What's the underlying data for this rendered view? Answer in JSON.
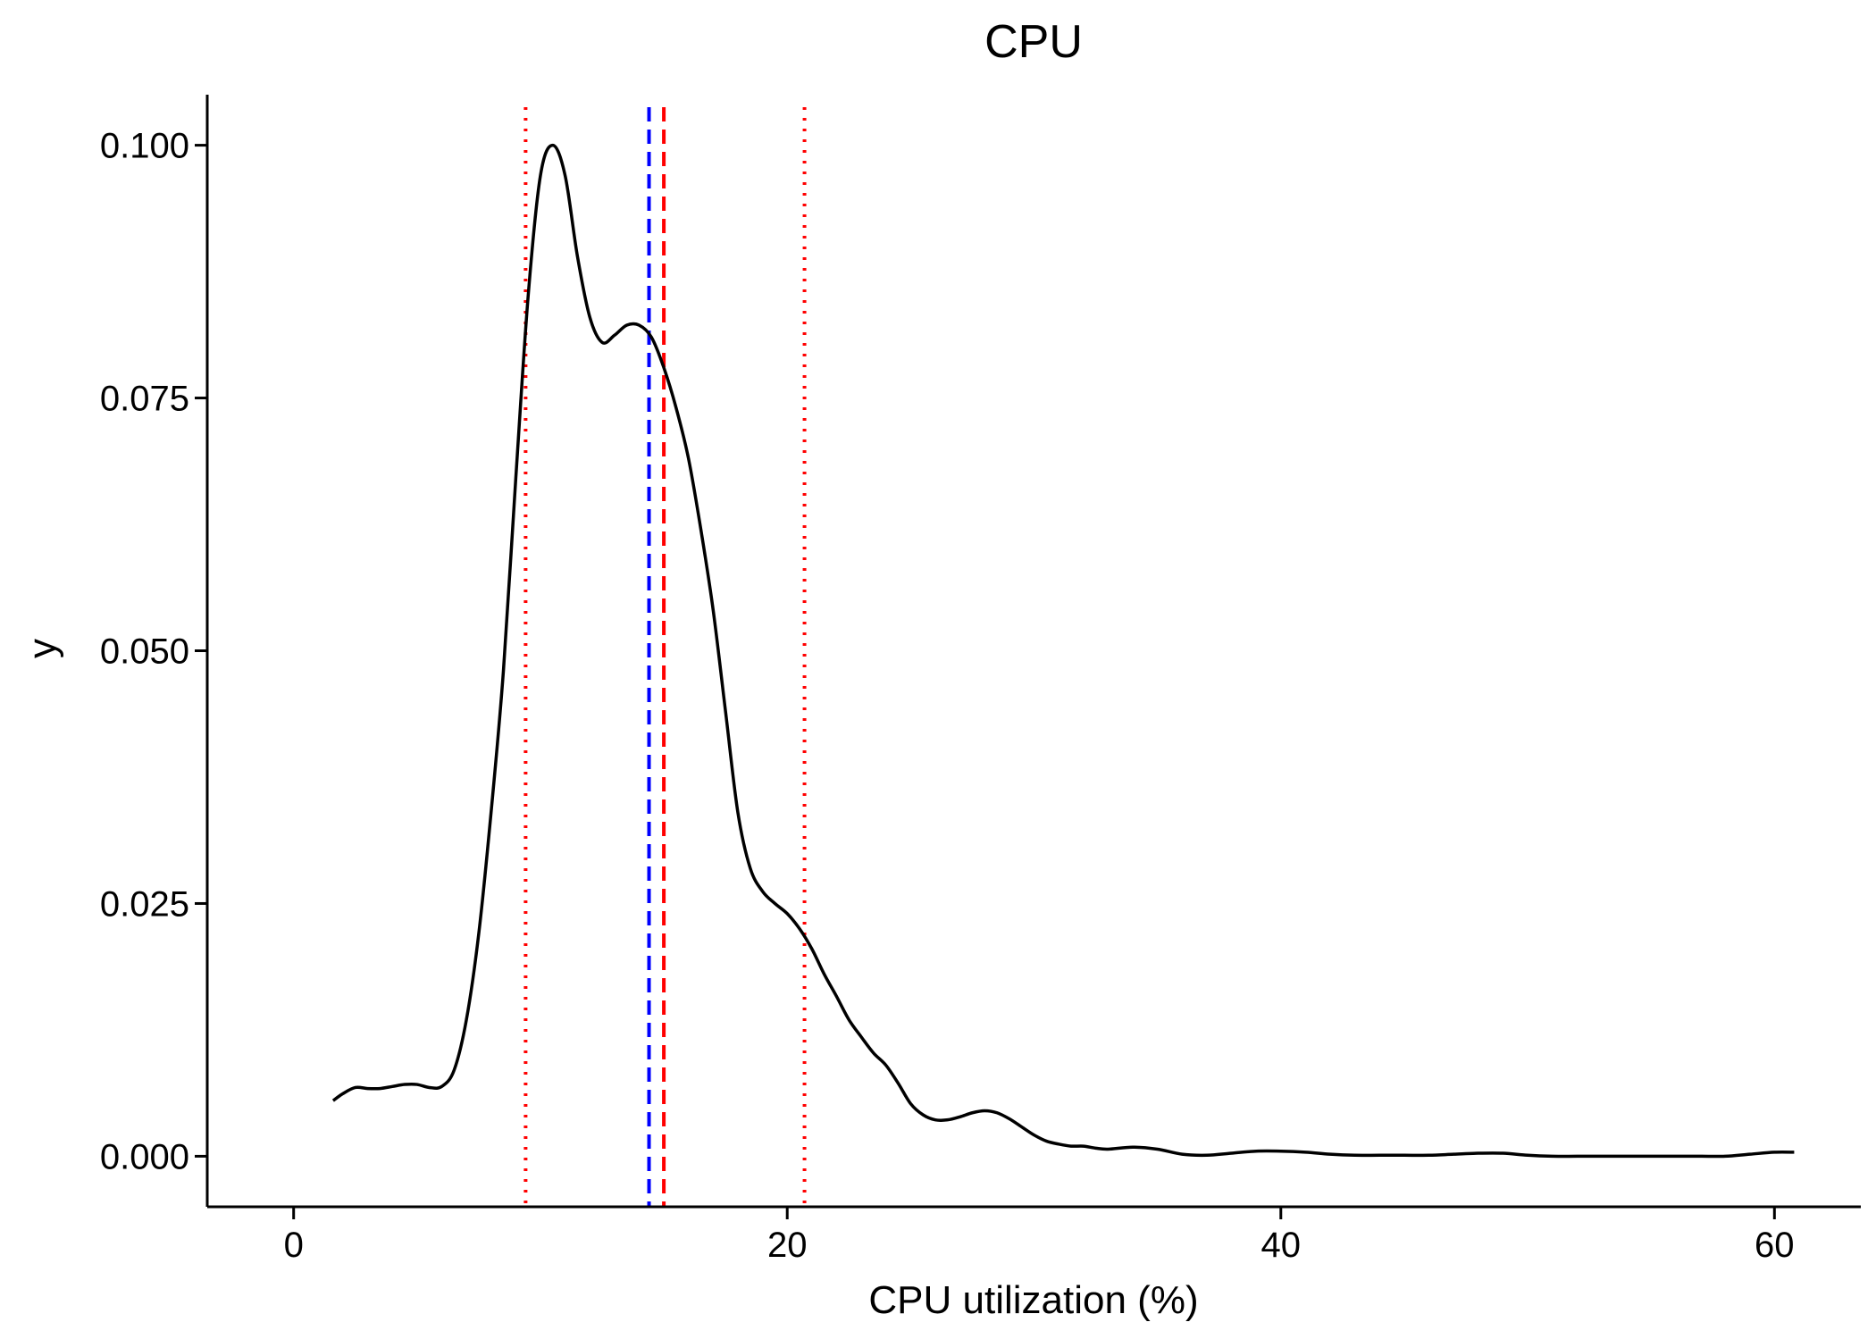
{
  "chart_data": {
    "type": "line",
    "title": "CPU",
    "xlabel": "CPU utilization (%)",
    "ylabel": "y",
    "xlim": [
      -3.5,
      63.5
    ],
    "ylim": [
      -0.005,
      0.105
    ],
    "x_ticks": [
      {
        "value": 0,
        "label": "0"
      },
      {
        "value": 20,
        "label": "20"
      },
      {
        "value": 40,
        "label": "40"
      },
      {
        "value": 60,
        "label": "60"
      }
    ],
    "y_ticks": [
      {
        "value": 0.0,
        "label": "0.000"
      },
      {
        "value": 0.025,
        "label": "0.025"
      },
      {
        "value": 0.05,
        "label": "0.050"
      },
      {
        "value": 0.075,
        "label": "0.075"
      },
      {
        "value": 0.1,
        "label": "0.100"
      }
    ],
    "grid": false,
    "legend": "none",
    "series": [
      {
        "color": "#000000",
        "x": [
          1.6,
          2.0,
          2.5,
          3.0,
          3.5,
          4.0,
          4.5,
          5.0,
          5.5,
          6.0,
          6.5,
          7.0,
          7.5,
          8.0,
          8.5,
          9.0,
          9.5,
          10.0,
          10.5,
          11.0,
          11.5,
          12.0,
          12.5,
          13.0,
          13.5,
          14.0,
          14.5,
          15.0,
          15.5,
          16.0,
          16.5,
          17.0,
          17.5,
          18.0,
          18.5,
          19.0,
          19.5,
          20.0,
          20.5,
          21.0,
          21.5,
          22.0,
          22.5,
          23.0,
          23.5,
          24.0,
          24.5,
          25.0,
          25.5,
          26.0,
          26.5,
          27.0,
          27.5,
          28.0,
          28.5,
          29.0,
          29.5,
          30.0,
          30.5,
          31.0,
          31.5,
          32.0,
          32.5,
          33.0,
          34.0,
          35.0,
          36.0,
          37.0,
          38.0,
          39.0,
          40.0,
          41.0,
          42.0,
          43.0,
          44.0,
          45.0,
          46.0,
          47.0,
          48.0,
          49.0,
          50.0,
          51.0,
          52.0,
          53.0,
          54.0,
          55.0,
          56.0,
          57.0,
          58.0,
          59.0,
          60.0,
          60.8
        ],
        "y": [
          0.0055,
          0.0062,
          0.0068,
          0.0067,
          0.0067,
          0.0069,
          0.0071,
          0.0071,
          0.0068,
          0.0069,
          0.0085,
          0.0135,
          0.022,
          0.034,
          0.048,
          0.067,
          0.085,
          0.097,
          0.1,
          0.097,
          0.089,
          0.083,
          0.0805,
          0.0812,
          0.0822,
          0.0822,
          0.081,
          0.078,
          0.074,
          0.069,
          0.062,
          0.054,
          0.044,
          0.034,
          0.0285,
          0.0262,
          0.025,
          0.024,
          0.0225,
          0.0205,
          0.018,
          0.0158,
          0.0135,
          0.0118,
          0.0102,
          0.009,
          0.0072,
          0.0052,
          0.0041,
          0.0036,
          0.0036,
          0.0039,
          0.0043,
          0.0045,
          0.0043,
          0.0037,
          0.0029,
          0.0021,
          0.0015,
          0.0012,
          0.001,
          0.001,
          0.0008,
          0.0007,
          0.0009,
          0.0007,
          0.0002,
          0.0001,
          0.0003,
          0.0005,
          0.0005,
          0.0004,
          0.0002,
          0.0001,
          0.0001,
          0.0001,
          0.0001,
          0.0002,
          0.0003,
          0.0003,
          0.0001,
          0.0,
          0.0,
          0.0,
          0.0,
          0.0,
          0.0,
          0.0,
          0.0,
          0.0002,
          0.0004,
          0.0004
        ]
      }
    ],
    "vlines": [
      {
        "x": 9.4,
        "color": "#ff0000",
        "style": "dotted"
      },
      {
        "x": 14.4,
        "color": "#0000ff",
        "style": "dashed"
      },
      {
        "x": 15.0,
        "color": "#ff0000",
        "style": "dashed"
      },
      {
        "x": 20.7,
        "color": "#ff0000",
        "style": "dotted"
      }
    ]
  }
}
